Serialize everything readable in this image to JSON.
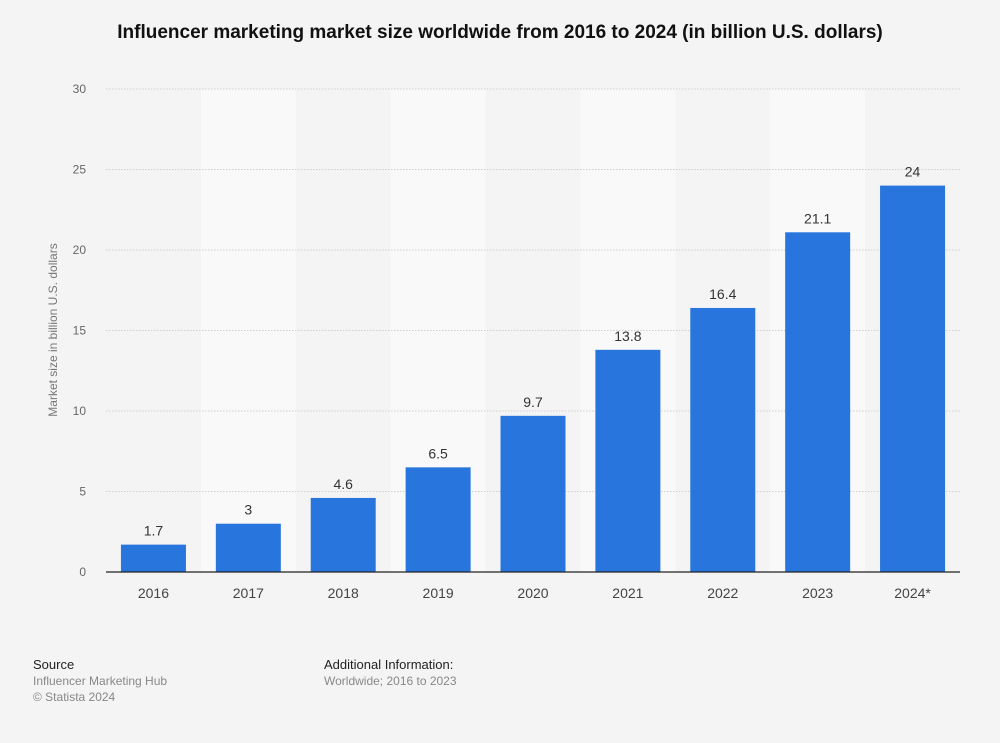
{
  "chart_data": {
    "type": "bar",
    "title": "Influencer marketing market size worldwide from 2016 to 2024 (in billion U.S. dollars)",
    "xlabel": "",
    "ylabel": "Market size in billion U.S. dollars",
    "categories": [
      "2016",
      "2017",
      "2018",
      "2019",
      "2020",
      "2021",
      "2022",
      "2023",
      "2024*"
    ],
    "values": [
      1.7,
      3,
      4.6,
      6.5,
      9.7,
      13.8,
      16.4,
      21.1,
      24
    ],
    "data_labels": [
      "1.7",
      "3",
      "4.6",
      "6.5",
      "9.7",
      "13.8",
      "16.4",
      "21.1",
      "24"
    ],
    "ylim": [
      0,
      30
    ],
    "yticks": [
      "0",
      "5",
      "10",
      "15",
      "20",
      "25",
      "30"
    ],
    "grid": true,
    "bar_color": "#2876dd"
  },
  "footer": {
    "source_heading": "Source",
    "source_text": "Influencer Marketing Hub",
    "copyright": "© Statista 2024",
    "info_heading": "Additional Information:",
    "info_text": "Worldwide; 2016 to 2023"
  }
}
